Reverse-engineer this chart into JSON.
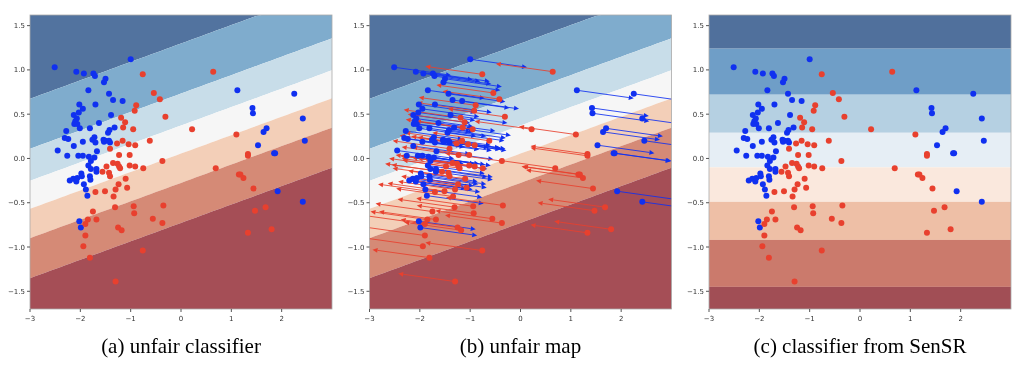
{
  "chart_data": [
    {
      "type": "scatter",
      "title": "(a) unfair classifier",
      "xlim": [
        -3,
        3
      ],
      "ylim": [
        -1.7,
        1.62
      ],
      "xticks": [
        {
          "value": -3,
          "label": "−3"
        },
        {
          "value": -2,
          "label": "−2"
        },
        {
          "value": -1,
          "label": "−1"
        },
        0,
        1,
        2
      ],
      "yticks": [
        {
          "value": -1.5,
          "label": "−1.5"
        },
        {
          "value": -1,
          "label": "−1.0"
        },
        {
          "value": -0.5,
          "label": "−0.5"
        },
        {
          "value": 0,
          "label": "0.0"
        },
        {
          "value": 0.5,
          "label": "0.5"
        },
        {
          "value": 1,
          "label": "1.0"
        },
        {
          "value": 1.5,
          "label": "1.5"
        }
      ],
      "marker": "circle",
      "series": [
        {
          "color": "#1030f0",
          "x": [
            -2.51,
            -2.08,
            -1.93,
            -1.74,
            -1.71,
            -1.5,
            -1.53,
            -1,
            -1.84,
            -1.43,
            -1.35,
            -1.16,
            -1.7,
            -2.02,
            -1.95,
            -2.03,
            -1.39,
            -2.13,
            -2.07,
            -2.1,
            -2.12,
            -2.06,
            -1.63,
            -2.01,
            -1.81,
            -1.32,
            -1.42,
            -1.45,
            -2.28,
            -2.31,
            -2.24,
            -1.72,
            -1.76,
            -1.95,
            -1.7,
            -1.54,
            -1.5,
            -1.53,
            -1.41,
            -1.43,
            -2.45,
            -2.13,
            -1.67,
            -2.26,
            -2.04,
            -1.95,
            -1.83,
            -1.72,
            -1.79,
            -1.84,
            -1.79,
            -1.68,
            -1.68,
            -1.98,
            -1.97,
            -1.81,
            -1.8,
            -2.21,
            -2.14,
            -2.08,
            -2.06,
            -1.93,
            -1.89,
            -1.86,
            -2.02,
            -1.99,
            1.12,
            1.42,
            1.43,
            2.25,
            2.42,
            1.7,
            1.64,
            2.46,
            1.53,
            1.85,
            1.87,
            1.92,
            2.42
          ],
          "values": [
            1.03,
            0.98,
            0.96,
            0.96,
            0.93,
            0.9,
            0.86,
            1.12,
            0.77,
            0.73,
            0.66,
            0.65,
            0.61,
            0.61,
            0.56,
            0.52,
            0.49,
            0.49,
            0.45,
            0.42,
            0.39,
            0.39,
            0.4,
            0.34,
            0.34,
            0.35,
            0.32,
            0.29,
            0.31,
            0.23,
            0.22,
            0.24,
            0.21,
            0.19,
            0.18,
            0.21,
            0.2,
            0.19,
            0.18,
            0.2,
            0.09,
            0.14,
            0.08,
            0.03,
            0.03,
            0.03,
            0.02,
            0.01,
            -0.03,
            -0.08,
            -0.12,
            -0.12,
            -0.15,
            -0.17,
            -0.2,
            -0.2,
            -0.24,
            -0.25,
            -0.23,
            -0.26,
            -0.22,
            -0.29,
            -0.35,
            -0.42,
            -0.71,
            -0.78,
            0.77,
            0.57,
            0.51,
            0.73,
            0.45,
            0.34,
            0.3,
            0.2,
            0.15,
            0.06,
            0.06,
            -0.37,
            -0.49
          ]
        },
        {
          "color": "#e8402e",
          "x": [
            -0.76,
            0.64,
            -0.54,
            -0.42,
            -0.89,
            -0.92,
            -0.31,
            -1.19,
            -1.11,
            -1.15,
            -0.95,
            0.22,
            -1.16,
            -1.27,
            -1.04,
            -0.91,
            -0.62,
            -1.41,
            -1.23,
            -1.02,
            -1.35,
            -1.26,
            -1.23,
            -1.21,
            -1.02,
            -0.91,
            -0.75,
            -0.37,
            -1.48,
            -1.56,
            -1.43,
            -1.41,
            -1.1,
            -1.24,
            -1.07,
            -1.3,
            -1.7,
            -1.51,
            -1.34,
            -1.31,
            -0.94,
            -0.35,
            -0.93,
            -1.75,
            -1.85,
            -1.68,
            -1.9,
            -0.56,
            -0.37,
            -1.25,
            -1.18,
            -1.9,
            -1.94,
            -1.81,
            -0.76,
            -1.3,
            1.1,
            0.69,
            1.33,
            1.33,
            1.15,
            1.18,
            1.24,
            1.44,
            1.47,
            1.68,
            1.8,
            1.33
          ],
          "values": [
            0.95,
            0.98,
            0.74,
            0.67,
            0.6,
            0.54,
            0.47,
            0.46,
            0.41,
            0.35,
            0.33,
            0.33,
            0.2,
            0.17,
            0.16,
            0.15,
            0.2,
            0.11,
            0.04,
            0.04,
            -0.05,
            -0.06,
            -0.09,
            -0.11,
            -0.08,
            -0.09,
            -0.11,
            -0.03,
            -0.09,
            -0.15,
            -0.16,
            -0.2,
            -0.23,
            -0.29,
            -0.33,
            -0.35,
            -0.38,
            -0.37,
            -0.43,
            -0.55,
            -0.54,
            -0.53,
            -0.62,
            -0.6,
            -0.69,
            -0.69,
            -0.74,
            -0.68,
            -0.73,
            -0.78,
            -0.81,
            -0.87,
            -0.99,
            -1.12,
            -1.04,
            -1.39,
            0.27,
            -0.11,
            0.05,
            0.03,
            -0.18,
            -0.18,
            -0.22,
            -0.34,
            -0.59,
            -0.55,
            -0.8,
            -0.84
          ]
        }
      ]
    },
    {
      "type": "scatter",
      "title": "(b) unfair map",
      "xlim": [
        -3,
        3
      ],
      "ylim": [
        -1.7,
        1.62
      ],
      "xticks": [
        {
          "value": -3,
          "label": "−3"
        },
        {
          "value": -2,
          "label": "−2"
        },
        {
          "value": -1,
          "label": "−1"
        },
        0,
        1,
        2
      ],
      "yticks": [
        {
          "value": -1.5,
          "label": "−1.5"
        },
        {
          "value": -1,
          "label": "−1.0"
        },
        {
          "value": -0.5,
          "label": "−0.5"
        },
        {
          "value": 0,
          "label": "0.0"
        },
        {
          "value": 0.5,
          "label": "0.5"
        },
        {
          "value": 1,
          "label": "1.0"
        },
        {
          "value": 1.5,
          "label": "1.5"
        }
      ],
      "marker": "circle",
      "series": [
        {
          "color": "#1030f0",
          "x": [
            -2.51,
            -2.08,
            -1.93,
            -1.74,
            -1.71,
            -1.5,
            -1.53,
            -1,
            -1.84,
            -1.43,
            -1.35,
            -1.16,
            -1.7,
            -2.02,
            -1.95,
            -2.03,
            -1.39,
            -2.13,
            -2.07,
            -2.1,
            -2.12,
            -2.06,
            -1.63,
            -2.01,
            -1.81,
            -1.32,
            -1.42,
            -1.45,
            -2.28,
            -2.31,
            -2.24,
            -1.72,
            -1.76,
            -1.95,
            -1.7,
            -1.54,
            -1.5,
            -1.53,
            -1.41,
            -1.43,
            -2.45,
            -2.13,
            -1.67,
            -2.26,
            -2.04,
            -1.95,
            -1.83,
            -1.72,
            -1.79,
            -1.84,
            -1.79,
            -1.68,
            -1.68,
            -1.98,
            -1.97,
            -1.81,
            -1.8,
            -2.21,
            -2.14,
            -2.08,
            -2.06,
            -1.93,
            -1.89,
            -1.86,
            -2.02,
            -1.99,
            1.12,
            1.42,
            1.43,
            2.25,
            2.42,
            1.7,
            1.64,
            2.46,
            1.53,
            1.85,
            1.87,
            1.92,
            2.42
          ],
          "values": [
            1.03,
            0.98,
            0.96,
            0.96,
            0.93,
            0.9,
            0.86,
            1.12,
            0.77,
            0.73,
            0.66,
            0.65,
            0.61,
            0.61,
            0.56,
            0.52,
            0.49,
            0.49,
            0.45,
            0.42,
            0.39,
            0.39,
            0.4,
            0.34,
            0.34,
            0.35,
            0.32,
            0.29,
            0.31,
            0.23,
            0.22,
            0.24,
            0.21,
            0.19,
            0.18,
            0.21,
            0.2,
            0.19,
            0.18,
            0.2,
            0.09,
            0.14,
            0.08,
            0.03,
            0.03,
            0.03,
            0.02,
            0.01,
            -0.03,
            -0.08,
            -0.12,
            -0.12,
            -0.15,
            -0.17,
            -0.2,
            -0.2,
            -0.24,
            -0.25,
            -0.23,
            -0.26,
            -0.22,
            -0.29,
            -0.35,
            -0.42,
            -0.71,
            -0.78,
            0.77,
            0.57,
            0.51,
            0.73,
            0.45,
            0.34,
            0.3,
            0.2,
            0.15,
            0.06,
            0.06,
            -0.37,
            -0.49
          ]
        },
        {
          "color": "#e8402e",
          "x": [
            -0.76,
            0.64,
            -0.54,
            -0.42,
            -0.89,
            -0.92,
            -0.31,
            -1.19,
            -1.11,
            -1.15,
            -0.95,
            0.22,
            -1.16,
            -1.27,
            -1.04,
            -0.91,
            -0.62,
            -1.41,
            -1.23,
            -1.02,
            -1.35,
            -1.26,
            -1.23,
            -1.21,
            -1.02,
            -0.91,
            -0.75,
            -0.37,
            -1.48,
            -1.56,
            -1.43,
            -1.41,
            -1.1,
            -1.24,
            -1.07,
            -1.3,
            -1.7,
            -1.51,
            -1.34,
            -1.31,
            -0.94,
            -0.35,
            -0.93,
            -1.75,
            -1.85,
            -1.68,
            -1.9,
            -0.56,
            -0.37,
            -1.25,
            -1.18,
            -1.9,
            -1.94,
            -1.81,
            -0.76,
            -1.3,
            1.1,
            0.69,
            1.33,
            1.33,
            1.15,
            1.18,
            1.24,
            1.44,
            1.47,
            1.68,
            1.8,
            1.33
          ],
          "values": [
            0.95,
            0.98,
            0.74,
            0.67,
            0.6,
            0.54,
            0.47,
            0.46,
            0.41,
            0.35,
            0.33,
            0.33,
            0.2,
            0.17,
            0.16,
            0.15,
            0.2,
            0.11,
            0.04,
            0.04,
            -0.05,
            -0.06,
            -0.09,
            -0.11,
            -0.08,
            -0.09,
            -0.11,
            -0.03,
            -0.09,
            -0.15,
            -0.16,
            -0.2,
            -0.23,
            -0.29,
            -0.33,
            -0.35,
            -0.38,
            -0.37,
            -0.43,
            -0.55,
            -0.54,
            -0.53,
            -0.62,
            -0.6,
            -0.69,
            -0.69,
            -0.74,
            -0.68,
            -0.73,
            -0.78,
            -0.81,
            -0.87,
            -0.99,
            -1.12,
            -1.04,
            -1.39,
            0.27,
            -0.11,
            0.05,
            0.03,
            -0.18,
            -0.18,
            -0.22,
            -0.34,
            -0.59,
            -0.55,
            -0.8,
            -0.84
          ]
        }
      ]
    },
    {
      "type": "scatter",
      "title": "(c) classifier from SenSR",
      "xlim": [
        -3,
        3
      ],
      "ylim": [
        -1.7,
        1.62
      ],
      "xticks": [
        {
          "value": -3,
          "label": "−3"
        },
        {
          "value": -2,
          "label": "−2"
        },
        {
          "value": -1,
          "label": "−1"
        },
        0,
        1,
        2
      ],
      "yticks": [
        {
          "value": -1.5,
          "label": "−1.5"
        },
        {
          "value": -1,
          "label": "−1.0"
        },
        {
          "value": -0.5,
          "label": "−0.5"
        },
        {
          "value": 0,
          "label": "0.0"
        },
        {
          "value": 0.5,
          "label": "0.5"
        },
        {
          "value": 1,
          "label": "1.0"
        },
        {
          "value": 1.5,
          "label": "1.5"
        }
      ],
      "marker": "circle",
      "bands": [
        {
          "axis": "y",
          "from": 1.24,
          "to": 1.62,
          "color": "#50709c"
        },
        {
          "axis": "y",
          "from": 0.72,
          "to": 1.24,
          "color": "#6f9ec7"
        },
        {
          "axis": "y",
          "from": 0.29,
          "to": 0.72,
          "color": "#b5d0e2"
        },
        {
          "axis": "y",
          "from": -0.1,
          "to": 0.29,
          "color": "#e6eef5"
        },
        {
          "axis": "y",
          "from": -0.49,
          "to": -0.1,
          "color": "#fae8dd"
        },
        {
          "axis": "y",
          "from": -0.92,
          "to": -0.49,
          "color": "#eebfa6"
        },
        {
          "axis": "y",
          "from": -1.45,
          "to": -0.92,
          "color": "#cb7a6c"
        },
        {
          "axis": "y",
          "from": -1.7,
          "to": -1.45,
          "color": "#a14e55"
        }
      ],
      "series": [
        {
          "color": "#1030f0",
          "x": [
            -2.51,
            -2.08,
            -1.93,
            -1.74,
            -1.71,
            -1.5,
            -1.53,
            -1,
            -1.84,
            -1.43,
            -1.35,
            -1.16,
            -1.7,
            -2.02,
            -1.95,
            -2.03,
            -1.39,
            -2.13,
            -2.07,
            -2.1,
            -2.12,
            -2.06,
            -1.63,
            -2.01,
            -1.81,
            -1.32,
            -1.42,
            -1.45,
            -2.28,
            -2.31,
            -2.24,
            -1.72,
            -1.76,
            -1.95,
            -1.7,
            -1.54,
            -1.5,
            -1.53,
            -1.41,
            -1.43,
            -2.45,
            -2.13,
            -1.67,
            -2.26,
            -2.04,
            -1.95,
            -1.83,
            -1.72,
            -1.79,
            -1.84,
            -1.79,
            -1.68,
            -1.68,
            -1.98,
            -1.97,
            -1.81,
            -1.8,
            -2.21,
            -2.14,
            -2.08,
            -2.06,
            -1.93,
            -1.89,
            -1.86,
            -2.02,
            -1.99,
            1.12,
            1.42,
            1.43,
            2.25,
            2.42,
            1.7,
            1.64,
            2.46,
            1.53,
            1.85,
            1.87,
            1.92,
            2.42
          ],
          "values": [
            1.03,
            0.98,
            0.96,
            0.96,
            0.93,
            0.9,
            0.86,
            1.12,
            0.77,
            0.73,
            0.66,
            0.65,
            0.61,
            0.61,
            0.56,
            0.52,
            0.49,
            0.49,
            0.45,
            0.42,
            0.39,
            0.39,
            0.4,
            0.34,
            0.34,
            0.35,
            0.32,
            0.29,
            0.31,
            0.23,
            0.22,
            0.24,
            0.21,
            0.19,
            0.18,
            0.21,
            0.2,
            0.19,
            0.18,
            0.2,
            0.09,
            0.14,
            0.08,
            0.03,
            0.03,
            0.03,
            0.02,
            0.01,
            -0.03,
            -0.08,
            -0.12,
            -0.12,
            -0.15,
            -0.17,
            -0.2,
            -0.2,
            -0.24,
            -0.25,
            -0.23,
            -0.26,
            -0.22,
            -0.29,
            -0.35,
            -0.42,
            -0.71,
            -0.78,
            0.77,
            0.57,
            0.51,
            0.73,
            0.45,
            0.34,
            0.3,
            0.2,
            0.15,
            0.06,
            0.06,
            -0.37,
            -0.49
          ]
        },
        {
          "color": "#e8402e",
          "x": [
            -0.76,
            0.64,
            -0.54,
            -0.42,
            -0.89,
            -0.92,
            -0.31,
            -1.19,
            -1.11,
            -1.15,
            -0.95,
            0.22,
            -1.16,
            -1.27,
            -1.04,
            -0.91,
            -0.62,
            -1.41,
            -1.23,
            -1.02,
            -1.35,
            -1.26,
            -1.23,
            -1.21,
            -1.02,
            -0.91,
            -0.75,
            -0.37,
            -1.48,
            -1.56,
            -1.43,
            -1.41,
            -1.1,
            -1.24,
            -1.07,
            -1.3,
            -1.7,
            -1.51,
            -1.34,
            -1.31,
            -0.94,
            -0.35,
            -0.93,
            -1.75,
            -1.85,
            -1.68,
            -1.9,
            -0.56,
            -0.37,
            -1.25,
            -1.18,
            -1.9,
            -1.94,
            -1.81,
            -0.76,
            -1.3,
            1.1,
            0.69,
            1.33,
            1.33,
            1.15,
            1.18,
            1.24,
            1.44,
            1.47,
            1.68,
            1.8,
            1.33
          ],
          "values": [
            0.95,
            0.98,
            0.74,
            0.67,
            0.6,
            0.54,
            0.47,
            0.46,
            0.41,
            0.35,
            0.33,
            0.33,
            0.2,
            0.17,
            0.16,
            0.15,
            0.2,
            0.11,
            0.04,
            0.04,
            -0.05,
            -0.06,
            -0.09,
            -0.11,
            -0.08,
            -0.09,
            -0.11,
            -0.03,
            -0.09,
            -0.15,
            -0.16,
            -0.2,
            -0.23,
            -0.29,
            -0.33,
            -0.35,
            -0.38,
            -0.37,
            -0.43,
            -0.55,
            -0.54,
            -0.53,
            -0.62,
            -0.6,
            -0.69,
            -0.69,
            -0.74,
            -0.68,
            -0.73,
            -0.78,
            -0.81,
            -0.87,
            -0.99,
            -1.12,
            -1.04,
            -1.39,
            0.27,
            -0.11,
            0.05,
            0.03,
            -0.18,
            -0.18,
            -0.22,
            -0.34,
            -0.59,
            -0.55,
            -0.8,
            -0.84
          ]
        }
      ]
    }
  ]
}
